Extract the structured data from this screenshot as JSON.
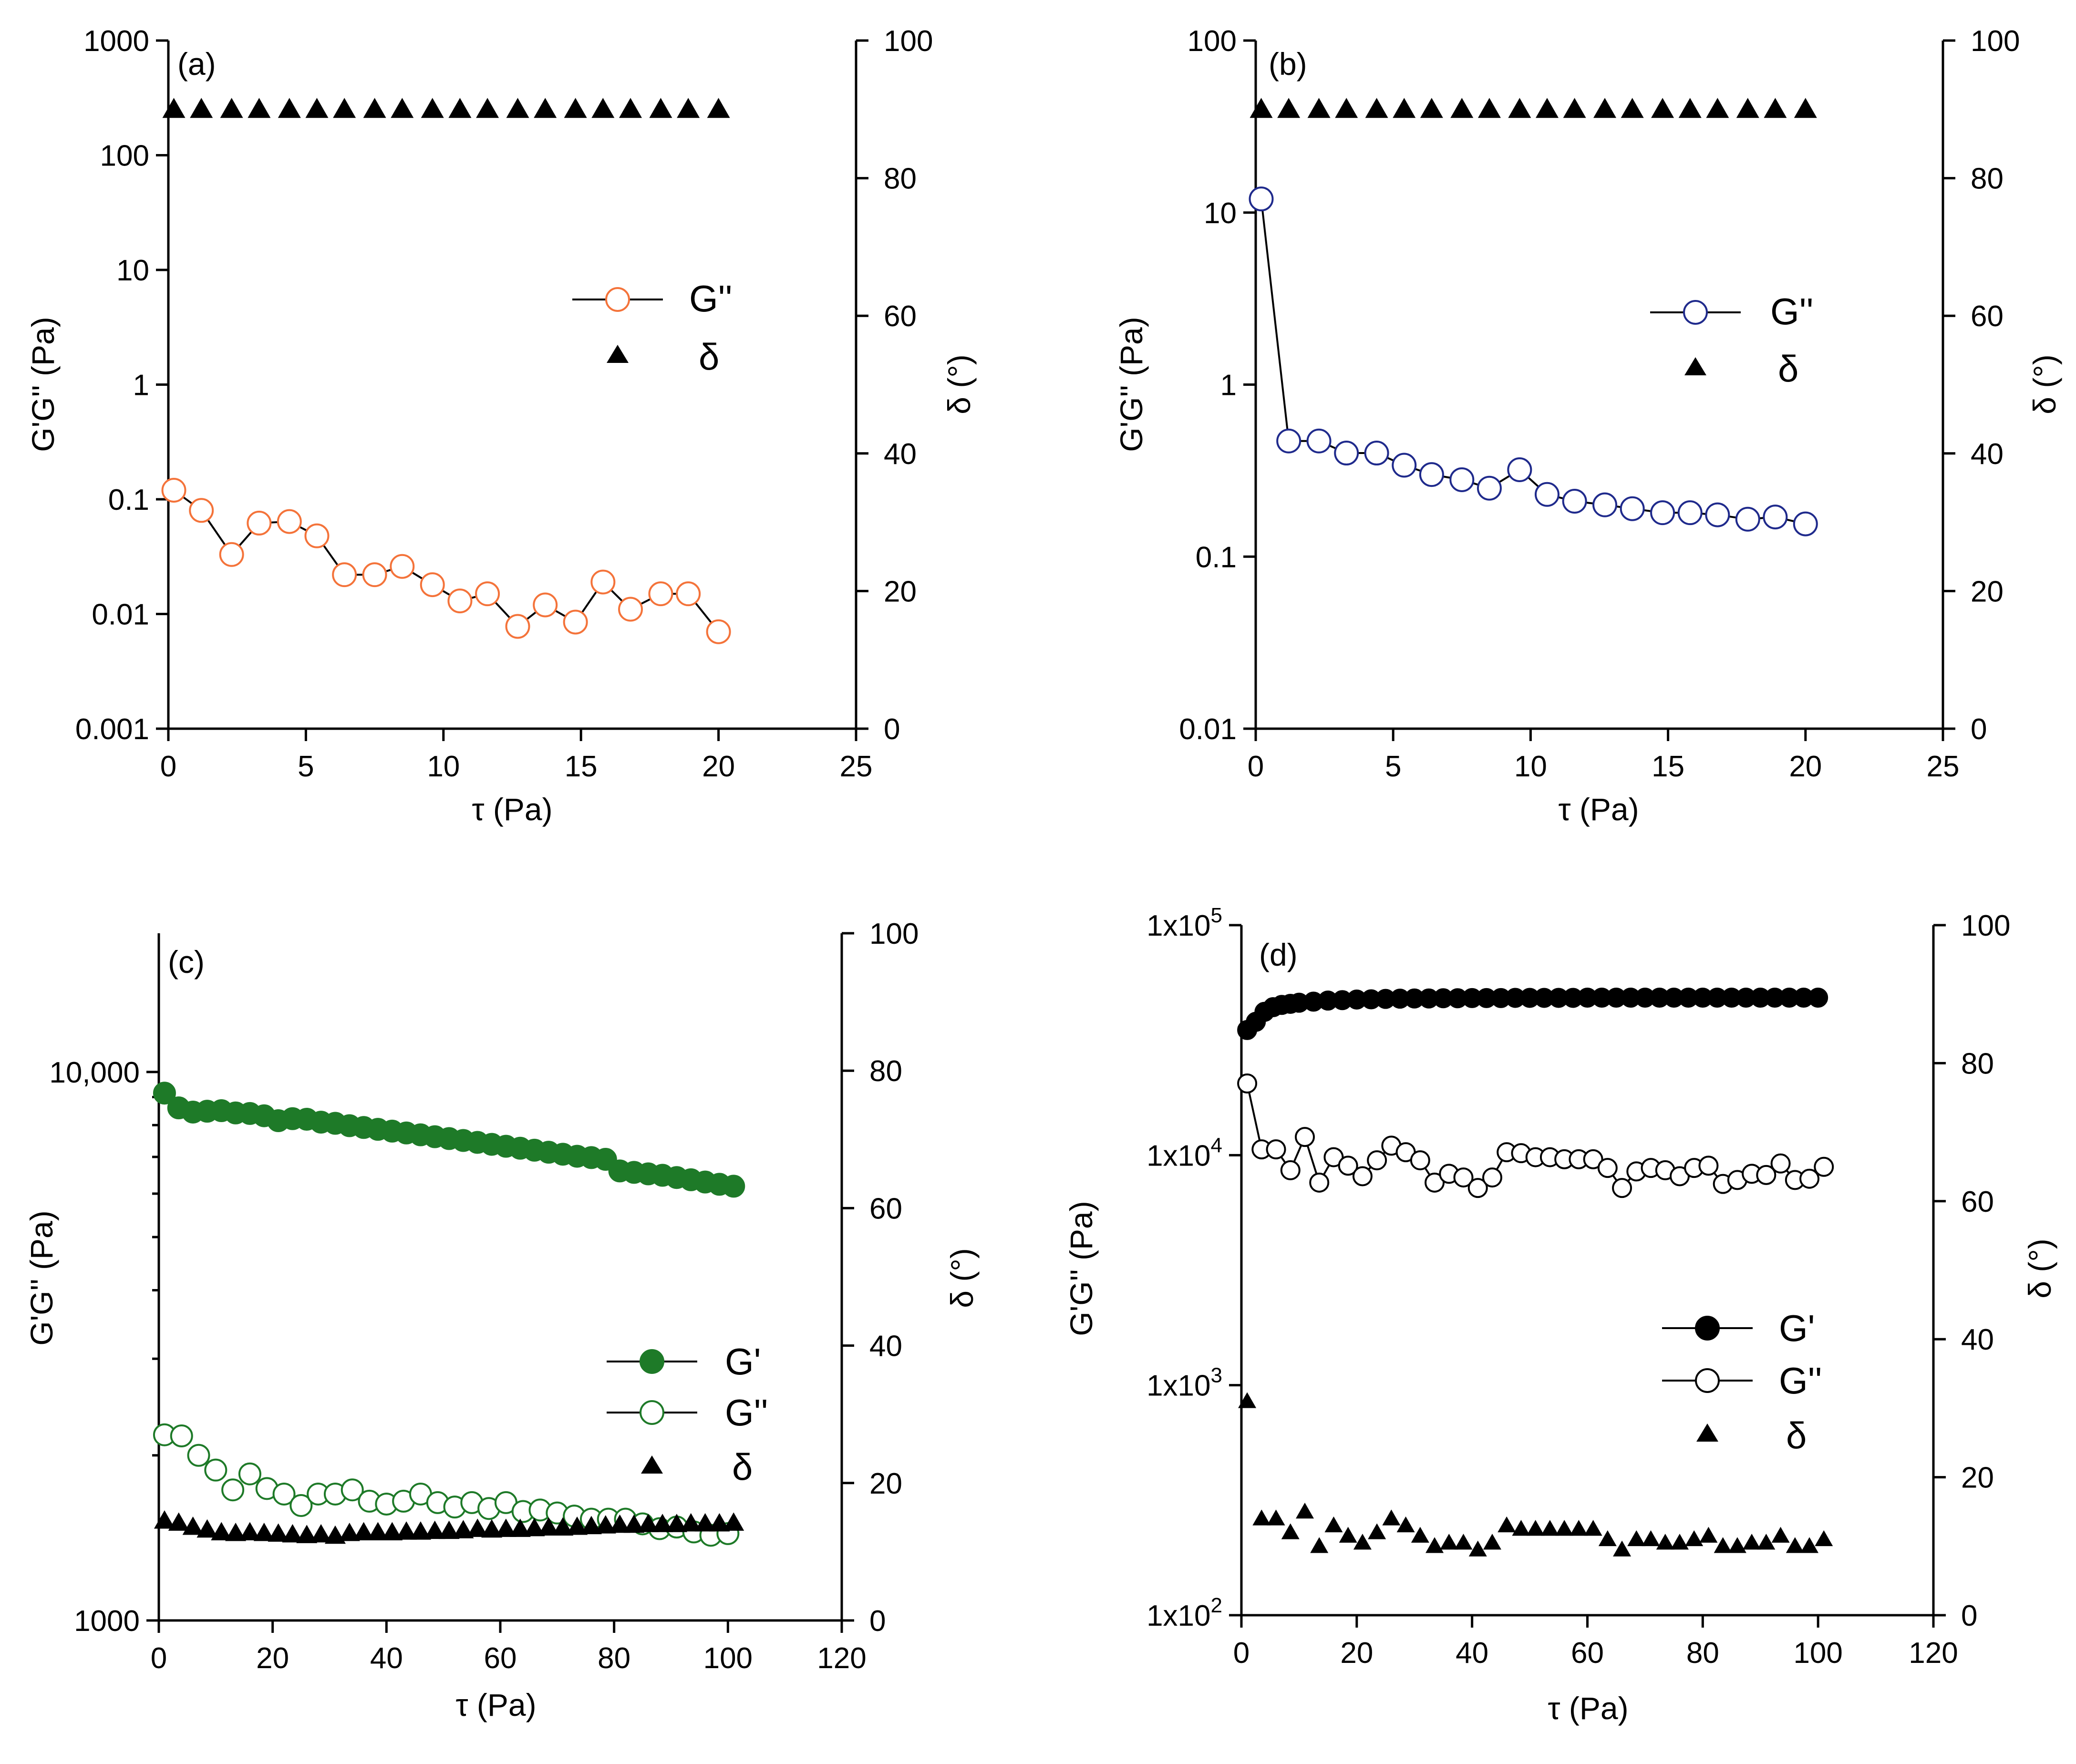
{
  "chart_data": [
    {
      "type": "scatter",
      "panel_label": "(a)",
      "xlabel": "τ (Pa)",
      "ylabel": "G'G'' (Pa)",
      "y2label": "δ (°)",
      "xlim": [
        0,
        25
      ],
      "xticks": [
        0,
        5,
        10,
        15,
        20,
        25
      ],
      "xtick_labels": [
        "0",
        "5",
        "10",
        "15",
        "20",
        "25"
      ],
      "yscale": "log",
      "ylim": [
        0.001,
        1000
      ],
      "yticks": [
        0.001,
        0.01,
        0.1,
        1,
        10,
        100,
        1000
      ],
      "ytick_labels": [
        "0.001",
        "0.01",
        "0.1",
        "1",
        "10",
        "100",
        "1000"
      ],
      "y2lim": [
        0,
        100
      ],
      "y2ticks": [
        0,
        20,
        40,
        60,
        80,
        100
      ],
      "y2tick_labels": [
        "0",
        "20",
        "40",
        "60",
        "80",
        "100"
      ],
      "legend_location": "middle-right",
      "series": [
        {
          "name": "G''",
          "axis": "left",
          "marker": "circle-open",
          "line": true,
          "color": "#f4733a",
          "x": [
            0.2,
            1.2,
            2.3,
            3.3,
            4.4,
            5.4,
            6.4,
            7.5,
            8.5,
            9.6,
            10.6,
            11.6,
            12.7,
            13.7,
            14.8,
            15.8,
            16.8,
            17.9,
            18.9,
            20.0
          ],
          "values": [
            0.12,
            0.08,
            0.033,
            0.062,
            0.064,
            0.048,
            0.022,
            0.022,
            0.026,
            0.018,
            0.013,
            0.015,
            0.0078,
            0.012,
            0.0085,
            0.019,
            0.011,
            0.015,
            0.015,
            0.007
          ]
        },
        {
          "name": "δ",
          "axis": "right",
          "marker": "triangle-filled",
          "line": false,
          "color": "#000000",
          "x": [
            0.2,
            1.2,
            2.3,
            3.3,
            4.4,
            5.4,
            6.4,
            7.5,
            8.5,
            9.6,
            10.6,
            11.6,
            12.7,
            13.7,
            14.8,
            15.8,
            16.8,
            17.9,
            18.9,
            20.0
          ],
          "values": [
            90,
            90,
            90,
            90,
            90,
            90,
            90,
            90,
            90,
            90,
            90,
            90,
            90,
            90,
            90,
            90,
            90,
            90,
            90,
            90
          ]
        }
      ]
    },
    {
      "type": "scatter",
      "panel_label": "(b)",
      "xlabel": "τ (Pa)",
      "ylabel": "G'G'' (Pa)",
      "y2label": "δ (°)",
      "xlim": [
        0,
        25
      ],
      "xticks": [
        0,
        5,
        10,
        15,
        20,
        25
      ],
      "xtick_labels": [
        "0",
        "5",
        "10",
        "15",
        "20",
        "25"
      ],
      "yscale": "log",
      "ylim": [
        0.01,
        100
      ],
      "yticks": [
        0.01,
        0.1,
        1,
        10,
        100
      ],
      "ytick_labels": [
        "0.01",
        "0.1",
        "1",
        "10",
        "100"
      ],
      "y2lim": [
        0,
        100
      ],
      "y2ticks": [
        0,
        20,
        40,
        60,
        80,
        100
      ],
      "y2tick_labels": [
        "0",
        "20",
        "40",
        "60",
        "80",
        "100"
      ],
      "legend_location": "middle-right",
      "series": [
        {
          "name": "G''",
          "axis": "left",
          "marker": "circle-open",
          "line": true,
          "color": "#1f2a8c",
          "x": [
            0.2,
            1.2,
            2.3,
            3.3,
            4.4,
            5.4,
            6.4,
            7.5,
            8.5,
            9.6,
            10.6,
            11.6,
            12.7,
            13.7,
            14.8,
            15.8,
            16.8,
            17.9,
            18.9,
            20.0
          ],
          "values": [
            12,
            0.47,
            0.47,
            0.4,
            0.4,
            0.34,
            0.3,
            0.28,
            0.25,
            0.32,
            0.23,
            0.21,
            0.2,
            0.19,
            0.18,
            0.18,
            0.175,
            0.165,
            0.17,
            0.155
          ]
        },
        {
          "name": "δ",
          "axis": "right",
          "marker": "triangle-filled",
          "line": false,
          "color": "#000000",
          "x": [
            0.2,
            1.2,
            2.3,
            3.3,
            4.4,
            5.4,
            6.4,
            7.5,
            8.5,
            9.6,
            10.6,
            11.6,
            12.7,
            13.7,
            14.8,
            15.8,
            16.8,
            17.9,
            18.9,
            20.0
          ],
          "values": [
            90,
            90,
            90,
            90,
            90,
            90,
            90,
            90,
            90,
            90,
            90,
            90,
            90,
            90,
            90,
            90,
            90,
            90,
            90,
            90
          ]
        }
      ]
    },
    {
      "type": "scatter",
      "panel_label": "(c)",
      "xlabel": "τ (Pa)",
      "ylabel": "G'G'' (Pa)",
      "y2label": "δ (°)",
      "xlim": [
        0,
        120
      ],
      "xticks": [
        0,
        20,
        40,
        60,
        80,
        100,
        120
      ],
      "xtick_labels": [
        "0",
        "20",
        "40",
        "60",
        "80",
        "100",
        "120"
      ],
      "yscale": "log",
      "ylim": [
        1000,
        17900
      ],
      "yticks": [
        1000,
        10000
      ],
      "ytick_labels": [
        "1000",
        "10,000"
      ],
      "y_minor_ticks": [
        2000,
        3000,
        4000,
        5000,
        6000,
        7000,
        8000,
        9000
      ],
      "y2lim": [
        0,
        100
      ],
      "y2ticks": [
        0,
        20,
        40,
        60,
        80,
        100
      ],
      "y2tick_labels": [
        "0",
        "20",
        "40",
        "60",
        "80",
        "100"
      ],
      "legend_location": "lower-right",
      "series": [
        {
          "name": "G'",
          "axis": "left",
          "marker": "circle-filled",
          "line": true,
          "color": "#1e7a28",
          "x": [
            1,
            3.5,
            6,
            8.5,
            11,
            13.5,
            16,
            18.5,
            21,
            23.5,
            26,
            28.5,
            31,
            33.5,
            36,
            38.5,
            41,
            43.5,
            46,
            48.5,
            51,
            53.5,
            56,
            58.5,
            61,
            63.5,
            66,
            68.5,
            71,
            73.5,
            76,
            78.5,
            81,
            83.5,
            86,
            88.5,
            91,
            93.5,
            96,
            98.5,
            101
          ],
          "values": [
            9150,
            8600,
            8450,
            8480,
            8500,
            8420,
            8400,
            8320,
            8150,
            8220,
            8200,
            8100,
            8060,
            7980,
            7920,
            7860,
            7800,
            7740,
            7680,
            7620,
            7560,
            7500,
            7440,
            7380,
            7320,
            7260,
            7200,
            7140,
            7080,
            7020,
            6980,
            6930,
            6600,
            6560,
            6520,
            6480,
            6420,
            6360,
            6300,
            6240,
            6190
          ]
        },
        {
          "name": "G''",
          "axis": "left",
          "marker": "circle-open",
          "line": false,
          "color": "#1e7a28",
          "x": [
            1,
            4,
            7,
            10,
            13,
            16,
            19,
            22,
            25,
            28,
            31,
            34,
            37,
            40,
            43,
            46,
            49,
            52,
            55,
            58,
            61,
            64,
            67,
            70,
            73,
            76,
            79,
            82,
            85,
            88,
            91,
            94,
            97,
            100
          ],
          "values": [
            2180,
            2170,
            2000,
            1880,
            1730,
            1850,
            1740,
            1700,
            1620,
            1700,
            1700,
            1730,
            1650,
            1630,
            1650,
            1700,
            1640,
            1610,
            1640,
            1600,
            1640,
            1580,
            1590,
            1570,
            1550,
            1530,
            1530,
            1530,
            1500,
            1470,
            1480,
            1450,
            1430,
            1440
          ]
        },
        {
          "name": "δ",
          "axis": "right",
          "marker": "triangle-filled",
          "line": false,
          "color": "#000000",
          "x": [
            1,
            3.5,
            6,
            8.5,
            11,
            13.5,
            16,
            18.5,
            21,
            23.5,
            26,
            28.5,
            31,
            33.5,
            36,
            38.5,
            41,
            43.5,
            46,
            48.5,
            51,
            53.5,
            56,
            58.5,
            61,
            63.5,
            66,
            68.5,
            71,
            73.5,
            76,
            78.5,
            81,
            83.5,
            86,
            88.5,
            91,
            93.5,
            96,
            98.5,
            101
          ],
          "values": [
            14.5,
            14.2,
            13.6,
            13.2,
            12.8,
            12.7,
            12.8,
            12.7,
            12.6,
            12.5,
            12.4,
            12.5,
            12.3,
            12.7,
            12.8,
            12.8,
            12.8,
            12.9,
            12.9,
            13.0,
            13.0,
            13.1,
            13.3,
            13.2,
            13.3,
            13.3,
            13.4,
            13.5,
            13.5,
            13.6,
            13.7,
            13.8,
            13.9,
            13.9,
            14.0,
            14.0,
            14.0,
            14.1,
            14.1,
            14.1,
            14.2
          ]
        }
      ]
    },
    {
      "type": "scatter",
      "panel_label": "(d)",
      "xlabel": "τ (Pa)",
      "ylabel": "G'G'' (Pa)",
      "y2label": "δ (°)",
      "xlim": [
        0,
        120
      ],
      "xticks": [
        0,
        20,
        40,
        60,
        80,
        100,
        120
      ],
      "xtick_labels": [
        "0",
        "20",
        "40",
        "60",
        "80",
        "100",
        "120"
      ],
      "yscale": "log",
      "ylim": [
        100,
        100000
      ],
      "yticks": [
        100,
        1000,
        10000,
        100000
      ],
      "ytick_labels": [
        {
          "base": "1x10",
          "exp": "2"
        },
        {
          "base": "1x10",
          "exp": "3"
        },
        {
          "base": "1x10",
          "exp": "4"
        },
        {
          "base": "1x10",
          "exp": "5"
        }
      ],
      "y2lim": [
        0,
        100
      ],
      "y2ticks": [
        0,
        20,
        40,
        60,
        80,
        100
      ],
      "y2tick_labels": [
        "0",
        "20",
        "40",
        "60",
        "80",
        "100"
      ],
      "legend_location": "lower-right",
      "series": [
        {
          "name": "G'",
          "axis": "left",
          "marker": "circle-filled",
          "line": true,
          "color": "#000000",
          "x": [
            1,
            2.5,
            4,
            5.5,
            7,
            8.5,
            10,
            12.5,
            15,
            17.5,
            20,
            22.5,
            25,
            27.5,
            30,
            32.5,
            35,
            37.5,
            40,
            42.5,
            45,
            47.5,
            50,
            52.5,
            55,
            57.5,
            60,
            62.5,
            65,
            67.5,
            70,
            72.5,
            75,
            77.5,
            80,
            82.5,
            85,
            87.5,
            90,
            92.5,
            95,
            97.5,
            100
          ],
          "values": [
            35000,
            38000,
            42000,
            44000,
            45000,
            45500,
            46000,
            46500,
            47000,
            47200,
            47500,
            47600,
            47800,
            47900,
            48000,
            48000,
            48100,
            48100,
            48200,
            48200,
            48200,
            48300,
            48300,
            48300,
            48300,
            48300,
            48400,
            48400,
            48400,
            48400,
            48400,
            48400,
            48400,
            48400,
            48400,
            48400,
            48400,
            48400,
            48400,
            48400,
            48400,
            48400,
            48400
          ]
        },
        {
          "name": "G''",
          "axis": "left",
          "marker": "circle-open",
          "line": true,
          "color": "#000000",
          "x": [
            1,
            3.5,
            6,
            8.5,
            11,
            13.5,
            16,
            18.5,
            21,
            23.5,
            26,
            28.5,
            31,
            33.5,
            36,
            38.5,
            41,
            43.5,
            46,
            48.5,
            51,
            53.5,
            56,
            58.5,
            61,
            63.5,
            66,
            68.5,
            71,
            73.5,
            76,
            78.5,
            81,
            83.5,
            86,
            88.5,
            91,
            93.5,
            96,
            98.5,
            101
          ],
          "values": [
            20500,
            10600,
            10600,
            8600,
            12000,
            7600,
            9800,
            9000,
            8100,
            9500,
            11000,
            10300,
            9500,
            7600,
            8300,
            8000,
            7200,
            8000,
            10300,
            10200,
            9800,
            9800,
            9600,
            9600,
            9600,
            8800,
            7200,
            8500,
            8800,
            8600,
            8100,
            8800,
            9000,
            7500,
            7800,
            8300,
            8200,
            9200,
            7800,
            7900,
            8900
          ]
        },
        {
          "name": "δ",
          "axis": "right",
          "marker": "triangle-filled",
          "line": false,
          "color": "#000000",
          "x": [
            1,
            3.5,
            6,
            8.5,
            11,
            13.5,
            16,
            18.5,
            21,
            23.5,
            26,
            28.5,
            31,
            33.5,
            36,
            38.5,
            41,
            43.5,
            46,
            48.5,
            51,
            53.5,
            56,
            58.5,
            61,
            63.5,
            66,
            68.5,
            71,
            73.5,
            76,
            78.5,
            81,
            83.5,
            86,
            88.5,
            91,
            93.5,
            96,
            98.5,
            101
          ],
          "values": [
            31,
            14,
            14,
            12,
            15,
            10,
            13,
            11.5,
            10.5,
            12,
            14,
            13,
            11.5,
            10,
            10.5,
            10.5,
            9.5,
            10.5,
            13,
            12.5,
            12.5,
            12.5,
            12.5,
            12.5,
            12.5,
            11,
            9.5,
            11,
            11,
            10.5,
            10.5,
            11,
            11.5,
            10,
            10,
            10.5,
            10.5,
            11.5,
            10,
            10,
            11
          ]
        }
      ]
    }
  ]
}
